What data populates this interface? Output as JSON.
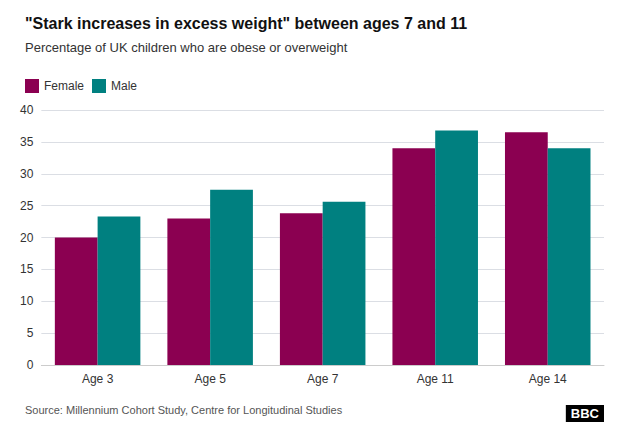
{
  "chart_data": {
    "type": "bar",
    "title": "\"Stark increases in excess weight\" between ages 7 and 11",
    "subtitle": "Percentage of UK children who are obese or overweight",
    "categories": [
      "Age 3",
      "Age 5",
      "Age 7",
      "Age 11",
      "Age 14"
    ],
    "series": [
      {
        "name": "Female",
        "color": "#8B0051",
        "values": [
          20.0,
          23.0,
          23.8,
          34.0,
          36.5
        ]
      },
      {
        "name": "Male",
        "color": "#008080",
        "values": [
          23.3,
          27.5,
          25.6,
          36.8,
          34.0
        ]
      }
    ],
    "ylim": [
      0,
      40
    ],
    "yticks": [
      0,
      5,
      10,
      15,
      20,
      25,
      30,
      35,
      40
    ],
    "grid": true,
    "legend": "upper left",
    "annotations": [
      "Source: Millennium Cohort Study, Centre for Longitudinal Studies",
      "BBC"
    ]
  }
}
